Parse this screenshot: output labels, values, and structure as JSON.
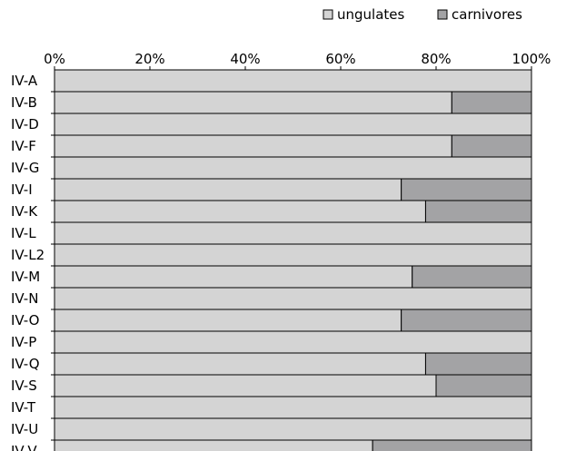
{
  "chart_data": {
    "type": "bar",
    "orientation": "horizontal",
    "stacked": true,
    "percent": true,
    "categories": [
      "IV-A",
      "IV-B",
      "IV-D",
      "IV-F",
      "IV-G",
      "IV-I",
      "IV-K",
      "IV-L",
      "IV-L2",
      "IV-M",
      "IV-N",
      "IV-O",
      "IV-P",
      "IV-Q",
      "IV-S",
      "IV-T",
      "IV-U",
      "IV-V"
    ],
    "series": [
      {
        "name": "ungulates",
        "color": "#d4d4d4",
        "values": [
          100,
          83.3,
          100,
          83.3,
          100,
          72.7,
          77.8,
          100,
          100,
          75,
          100,
          72.7,
          100,
          77.8,
          80,
          100,
          100,
          66.7
        ]
      },
      {
        "name": "carnivores",
        "color": "#a3a3a5",
        "values": [
          0,
          16.7,
          0,
          16.7,
          0,
          27.3,
          22.2,
          0,
          0,
          25,
          0,
          27.3,
          0,
          22.2,
          20,
          0,
          0,
          33.3
        ]
      }
    ],
    "xlim": [
      0,
      100
    ],
    "x_ticks": [
      "0%",
      "20%",
      "40%",
      "60%",
      "80%",
      "100%"
    ],
    "axis_position": "top",
    "legend_position": "top-right",
    "grid": false,
    "title": "",
    "xlabel": "",
    "ylabel": ""
  }
}
